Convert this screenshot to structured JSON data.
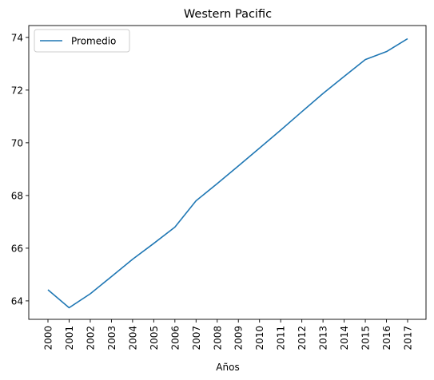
{
  "chart_data": {
    "type": "line",
    "title": "Western Pacific",
    "xlabel": "Años",
    "ylabel": "",
    "x": [
      "2000",
      "2001",
      "2002",
      "2003",
      "2004",
      "2005",
      "2006",
      "2007",
      "2008",
      "2009",
      "2010",
      "2011",
      "2012",
      "2013",
      "2014",
      "2015",
      "2016",
      "2017"
    ],
    "series": [
      {
        "name": "Promedio",
        "color": "#1f77b4",
        "values": [
          64.42,
          63.74,
          64.27,
          64.92,
          65.58,
          66.18,
          66.8,
          67.8,
          68.45,
          69.12,
          69.8,
          70.48,
          71.18,
          71.87,
          72.52,
          73.16,
          73.46,
          73.95
        ]
      }
    ],
    "ylim": [
      63.3,
      74.45
    ],
    "yticks": [
      64,
      66,
      68,
      70,
      72,
      74
    ],
    "x_tick_rotation": "vertical",
    "grid": false,
    "legend_position": "top-left"
  }
}
